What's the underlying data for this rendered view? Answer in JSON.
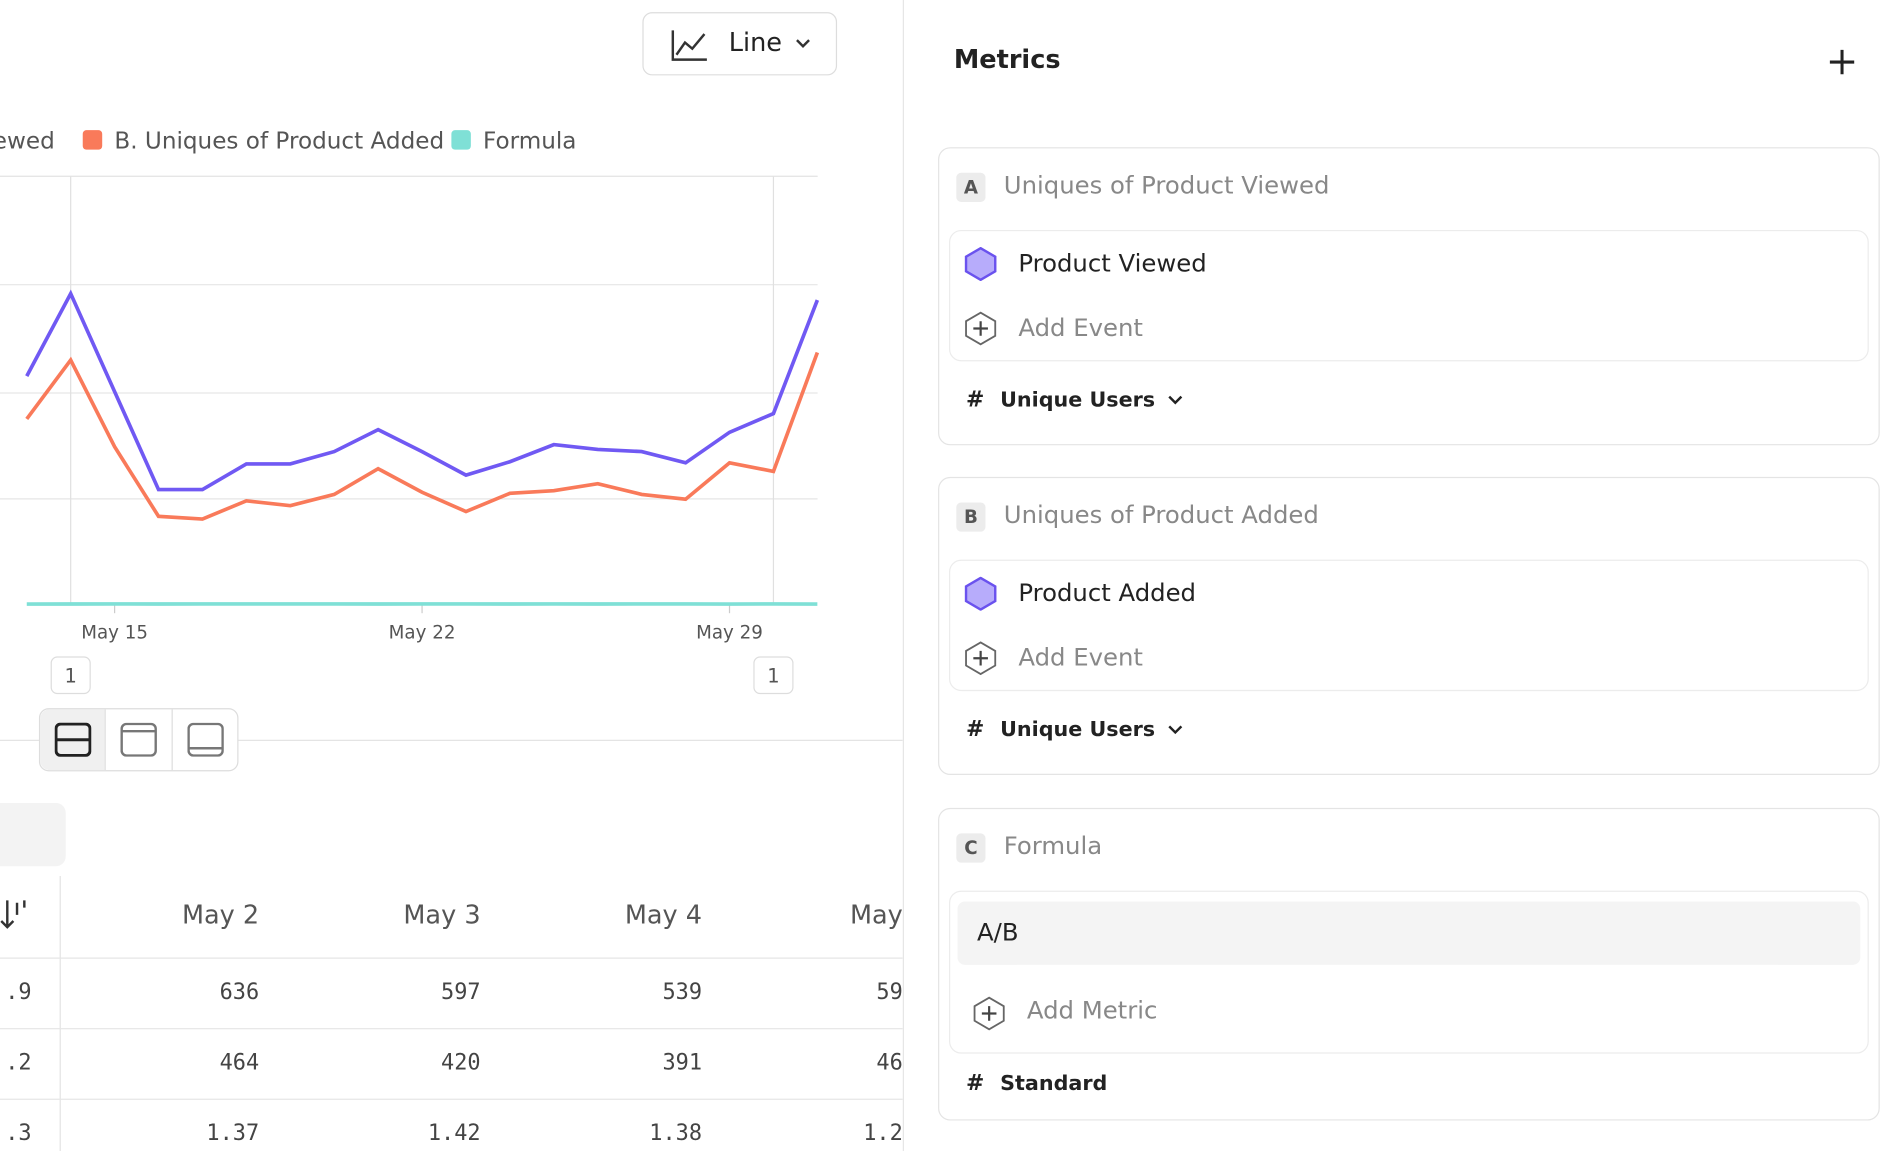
{
  "toolbar": {
    "chart_type_button": "Line"
  },
  "chart_data": {
    "type": "line",
    "categories": [
      null,
      null,
      "May 15",
      null,
      null,
      null,
      null,
      null,
      null,
      "May 22",
      null,
      null,
      null,
      null,
      null,
      null,
      "May 29",
      null,
      null
    ],
    "series": [
      {
        "name": "A. Uniques of Product Viewed",
        "color": "#7059f3",
        "values": [
          427,
          581,
          398,
          215,
          215,
          263,
          263,
          286,
          327,
          286,
          242,
          267,
          299,
          290,
          286,
          265,
          322,
          357,
          569
        ]
      },
      {
        "name": "B. Uniques of Product Added",
        "color": "#f97a5a",
        "values": [
          347,
          457,
          295,
          165,
          160,
          194,
          185,
          206,
          254,
          210,
          174,
          208,
          213,
          226,
          206,
          197,
          265,
          249,
          471
        ]
      },
      {
        "name": "Formula",
        "color": "#7fe0d6",
        "values": [
          1.23,
          1.27,
          1.35,
          1.3,
          1.34,
          1.36,
          1.42,
          1.39,
          1.29,
          1.36,
          1.39,
          1.28,
          1.4,
          1.28,
          1.39,
          1.35,
          1.22,
          1.43,
          1.21
        ]
      }
    ],
    "ylim": [
      0,
      800
    ],
    "annotations": [
      "1",
      "1"
    ]
  },
  "table": {
    "header": [
      "May 2",
      "May 3",
      "May 4",
      "May"
    ],
    "rows": [
      [
        ".9",
        "636",
        "597",
        "539",
        "59"
      ],
      [
        ".2",
        "464",
        "420",
        "391",
        "46"
      ],
      [
        ".3",
        "1.37",
        "1.42",
        "1.38",
        "1.2"
      ]
    ]
  },
  "metrics_panel": {
    "title": "Metrics",
    "cards": [
      {
        "letter": "A",
        "title": "Uniques of Product Viewed",
        "event": "Product Viewed",
        "add": "Add Event",
        "measure": "Unique Users"
      },
      {
        "letter": "B",
        "title": "Uniques of Product Added",
        "event": "Product Added",
        "add": "Add Event",
        "measure": "Unique Users"
      },
      {
        "letter": "C",
        "title": "Formula",
        "event": "A/B",
        "add": "Add Metric",
        "measure": "Standard"
      }
    ]
  }
}
